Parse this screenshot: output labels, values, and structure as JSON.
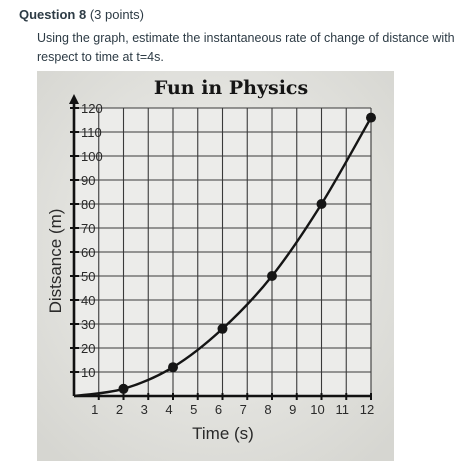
{
  "question": {
    "title": "Question 8",
    "points": "(3 points)",
    "text": "Using the graph, estimate the instantaneous rate of change of distance with respect to time at t=4s."
  },
  "chart_data": {
    "type": "line",
    "title": "Fun in Physics",
    "xlabel": "Time (s)",
    "ylabel": "Distsance (m)",
    "xlim": [
      0,
      12
    ],
    "ylim": [
      0,
      120
    ],
    "x_ticks": [
      "1",
      "2",
      "3",
      "4",
      "5",
      "6",
      "7",
      "8",
      "9",
      "10",
      "11",
      "12"
    ],
    "y_ticks": [
      "10",
      "20",
      "30",
      "40",
      "50",
      "60",
      "70",
      "80",
      "90",
      "100",
      "110",
      "120"
    ],
    "grid": true,
    "series": [
      {
        "x": [
          0,
          2,
          4,
          6,
          8,
          10,
          12
        ],
        "y": [
          0,
          3,
          12,
          28,
          50,
          80,
          116
        ]
      }
    ],
    "colors": {
      "line": "#151515",
      "grid": "#3a3a3a",
      "background": "#ececea"
    }
  }
}
